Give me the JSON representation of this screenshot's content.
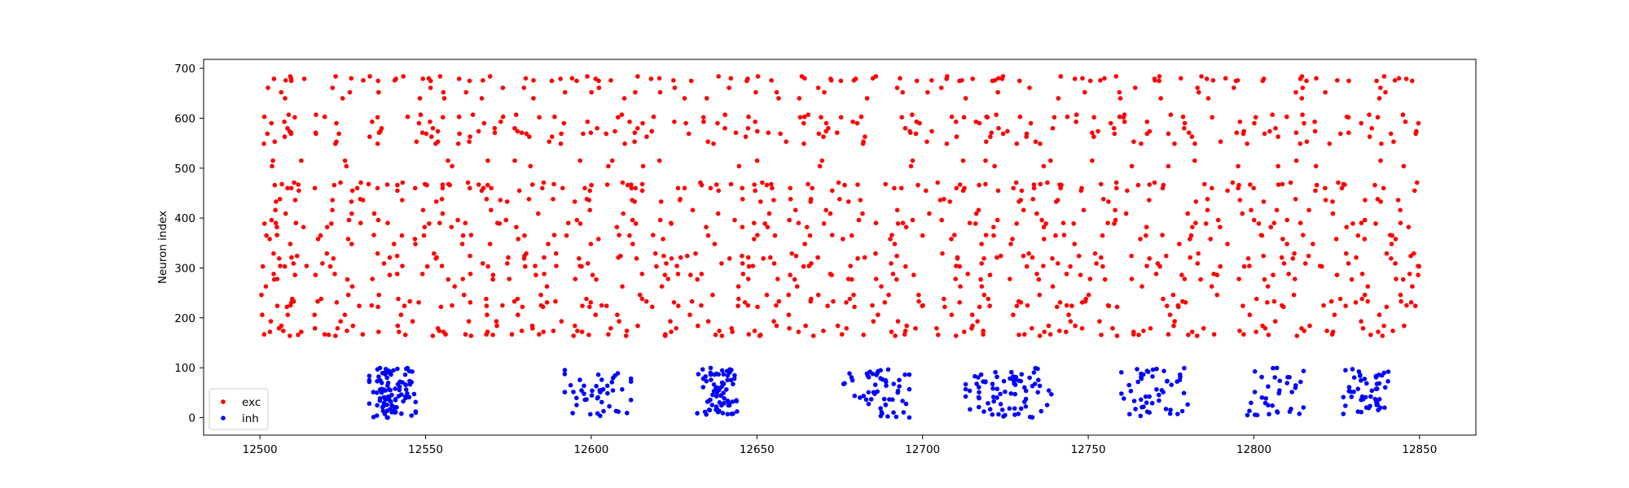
{
  "chart_data": {
    "type": "scatter",
    "title": "",
    "xlabel": "",
    "ylabel": "Neuron index",
    "xlim": [
      12483,
      12867
    ],
    "ylim": [
      -35,
      718
    ],
    "xticks": [
      12500,
      12550,
      12600,
      12650,
      12700,
      12750,
      12800,
      12850
    ],
    "yticks": [
      0,
      100,
      200,
      300,
      400,
      500,
      600,
      700
    ],
    "grid": false,
    "legend": {
      "placement": "lower-left",
      "entries": [
        "exc",
        "inh"
      ]
    },
    "series": [
      {
        "name": "exc",
        "color": "#ff0000",
        "y_range": [
          160,
          685
        ],
        "x_range": [
          12500,
          12850
        ]
      },
      {
        "name": "inh",
        "color": "#0000ff",
        "y_range": [
          0,
          100
        ],
        "bursts": [
          {
            "x_center": 12540,
            "x_spread": 7,
            "count": 95
          },
          {
            "x_center": 12602,
            "x_spread": 10,
            "count": 45
          },
          {
            "x_center": 12638,
            "x_spread": 6,
            "count": 75
          },
          {
            "x_center": 12686,
            "x_spread": 10,
            "count": 55
          },
          {
            "x_center": 12726,
            "x_spread": 13,
            "count": 75
          },
          {
            "x_center": 12770,
            "x_spread": 10,
            "count": 50
          },
          {
            "x_center": 12806,
            "x_spread": 9,
            "count": 35
          },
          {
            "x_center": 12835,
            "x_spread": 8,
            "count": 50
          }
        ]
      }
    ]
  }
}
